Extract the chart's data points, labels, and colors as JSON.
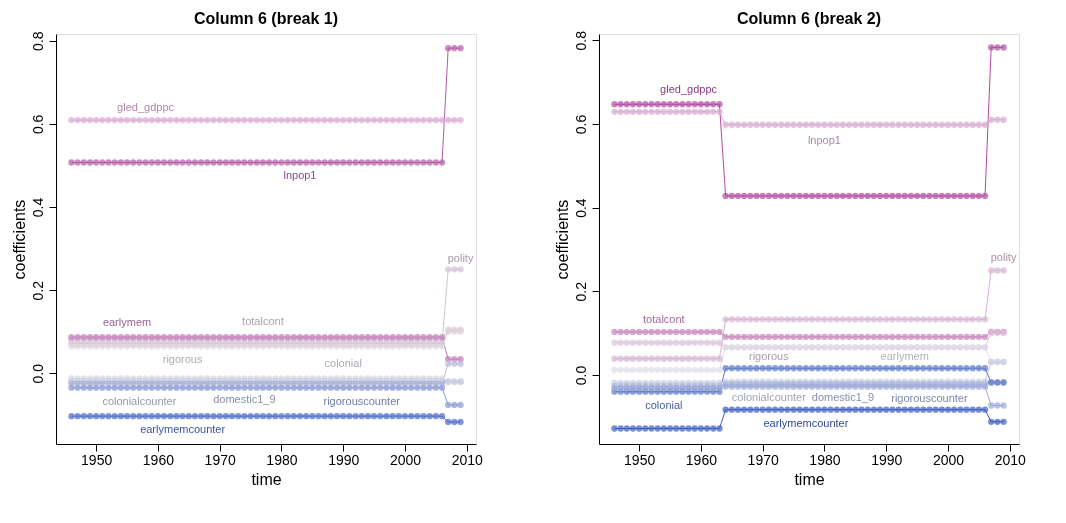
{
  "chart_data": [
    {
      "type": "line",
      "title": "Column 6 (break 1)",
      "xlabel": "time",
      "ylabel": "coefficients",
      "marker": "circle",
      "grid": false,
      "legend": false,
      "x": [
        1946,
        1947,
        1948,
        1949,
        1950,
        1951,
        1952,
        1953,
        1954,
        1955,
        1956,
        1957,
        1958,
        1959,
        1960,
        1961,
        1962,
        1963,
        1964,
        1965,
        1966,
        1967,
        1968,
        1969,
        1970,
        1971,
        1972,
        1973,
        1974,
        1975,
        1976,
        1977,
        1978,
        1979,
        1980,
        1981,
        1982,
        1983,
        1984,
        1985,
        1986,
        1987,
        1988,
        1989,
        1990,
        1991,
        1992,
        1993,
        1994,
        1995,
        1996,
        1997,
        1998,
        1999,
        2000,
        2001,
        2002,
        2003,
        2004,
        2005,
        2006,
        2007,
        2008,
        2009
      ],
      "xlim": [
        1943.5,
        2011.5
      ],
      "xticks": [
        1950,
        1960,
        1970,
        1980,
        1990,
        2000,
        2010
      ],
      "ylim": [
        -0.17,
        0.816
      ],
      "yticks": [
        {
          "value": 0,
          "label": "0.0"
        },
        0.2,
        0.4,
        0.6,
        0.8
      ],
      "series": [
        {
          "name": "gled_gdppc",
          "color": "#dca8d4",
          "values": [
            0.609,
            0.609,
            0.609,
            0.609,
            0.609,
            0.609,
            0.609,
            0.609,
            0.609,
            0.609,
            0.609,
            0.609,
            0.609,
            0.609,
            0.609,
            0.609,
            0.609,
            0.609,
            0.609,
            0.609,
            0.609,
            0.609,
            0.609,
            0.609,
            0.609,
            0.609,
            0.609,
            0.609,
            0.609,
            0.609,
            0.609,
            0.609,
            0.609,
            0.609,
            0.609,
            0.609,
            0.609,
            0.609,
            0.609,
            0.609,
            0.609,
            0.609,
            0.609,
            0.609,
            0.609,
            0.609,
            0.609,
            0.609,
            0.609,
            0.609,
            0.609,
            0.609,
            0.609,
            0.609,
            0.609,
            0.609,
            0.609,
            0.609,
            0.609,
            0.609,
            0.609,
            0.609,
            0.609,
            0.609
          ]
        },
        {
          "name": "lnpop1",
          "color": "#b35aa6",
          "values": [
            0.507,
            0.507,
            0.507,
            0.507,
            0.507,
            0.507,
            0.507,
            0.507,
            0.507,
            0.507,
            0.507,
            0.507,
            0.507,
            0.507,
            0.507,
            0.507,
            0.507,
            0.507,
            0.507,
            0.507,
            0.507,
            0.507,
            0.507,
            0.507,
            0.507,
            0.507,
            0.507,
            0.507,
            0.507,
            0.507,
            0.507,
            0.507,
            0.507,
            0.507,
            0.507,
            0.507,
            0.507,
            0.507,
            0.507,
            0.507,
            0.507,
            0.507,
            0.507,
            0.507,
            0.507,
            0.507,
            0.507,
            0.507,
            0.507,
            0.507,
            0.507,
            0.507,
            0.507,
            0.507,
            0.507,
            0.507,
            0.507,
            0.507,
            0.507,
            0.507,
            0.507,
            0.782,
            0.782,
            0.782
          ]
        },
        {
          "name": "polity",
          "color": "#d4c2d6",
          "values": [
            0.072,
            0.072,
            0.072,
            0.072,
            0.072,
            0.072,
            0.072,
            0.072,
            0.072,
            0.072,
            0.072,
            0.072,
            0.072,
            0.072,
            0.072,
            0.072,
            0.072,
            0.072,
            0.072,
            0.072,
            0.072,
            0.072,
            0.072,
            0.072,
            0.072,
            0.072,
            0.072,
            0.072,
            0.072,
            0.072,
            0.072,
            0.072,
            0.072,
            0.072,
            0.072,
            0.072,
            0.072,
            0.072,
            0.072,
            0.072,
            0.072,
            0.072,
            0.072,
            0.072,
            0.072,
            0.072,
            0.072,
            0.072,
            0.072,
            0.072,
            0.072,
            0.072,
            0.072,
            0.072,
            0.072,
            0.072,
            0.072,
            0.072,
            0.072,
            0.072,
            0.072,
            0.25,
            0.25,
            0.25
          ]
        },
        {
          "name": "totalcont",
          "color": "#d8c8d8",
          "values": [
            0.08,
            0.08,
            0.08,
            0.08,
            0.08,
            0.08,
            0.08,
            0.08,
            0.08,
            0.08,
            0.08,
            0.08,
            0.08,
            0.08,
            0.08,
            0.08,
            0.08,
            0.08,
            0.08,
            0.08,
            0.08,
            0.08,
            0.08,
            0.08,
            0.08,
            0.08,
            0.08,
            0.08,
            0.08,
            0.08,
            0.08,
            0.08,
            0.08,
            0.08,
            0.08,
            0.08,
            0.08,
            0.08,
            0.08,
            0.08,
            0.08,
            0.08,
            0.08,
            0.08,
            0.08,
            0.08,
            0.08,
            0.08,
            0.08,
            0.08,
            0.08,
            0.08,
            0.08,
            0.08,
            0.08,
            0.08,
            0.08,
            0.08,
            0.08,
            0.08,
            0.08,
            0.105,
            0.105,
            0.105
          ]
        },
        {
          "name": "rigorous",
          "color": "#dcd4dc",
          "values": [
            0.065,
            0.065,
            0.065,
            0.065,
            0.065,
            0.065,
            0.065,
            0.065,
            0.065,
            0.065,
            0.065,
            0.065,
            0.065,
            0.065,
            0.065,
            0.065,
            0.065,
            0.065,
            0.065,
            0.065,
            0.065,
            0.065,
            0.065,
            0.065,
            0.065,
            0.065,
            0.065,
            0.065,
            0.065,
            0.065,
            0.065,
            0.065,
            0.065,
            0.065,
            0.065,
            0.065,
            0.065,
            0.065,
            0.065,
            0.065,
            0.065,
            0.065,
            0.065,
            0.065,
            0.065,
            0.065,
            0.065,
            0.065,
            0.065,
            0.065,
            0.065,
            0.065,
            0.065,
            0.065,
            0.065,
            0.065,
            0.065,
            0.065,
            0.065,
            0.065,
            0.065,
            0.1,
            0.1,
            0.1
          ]
        },
        {
          "name": "earlymem",
          "color": "#c27ab6",
          "values": [
            0.087,
            0.087,
            0.087,
            0.087,
            0.087,
            0.087,
            0.087,
            0.087,
            0.087,
            0.087,
            0.087,
            0.087,
            0.087,
            0.087,
            0.087,
            0.087,
            0.087,
            0.087,
            0.087,
            0.087,
            0.087,
            0.087,
            0.087,
            0.087,
            0.087,
            0.087,
            0.087,
            0.087,
            0.087,
            0.087,
            0.087,
            0.087,
            0.087,
            0.087,
            0.087,
            0.087,
            0.087,
            0.087,
            0.087,
            0.087,
            0.087,
            0.087,
            0.087,
            0.087,
            0.087,
            0.087,
            0.087,
            0.087,
            0.087,
            0.087,
            0.087,
            0.087,
            0.087,
            0.087,
            0.087,
            0.087,
            0.087,
            0.087,
            0.087,
            0.087,
            0.087,
            0.034,
            0.034,
            0.034
          ]
        },
        {
          "name": "colonialcounter",
          "color": "#b8bedc",
          "values": [
            -0.025,
            -0.025,
            -0.025,
            -0.025,
            -0.025,
            -0.025,
            -0.025,
            -0.025,
            -0.025,
            -0.025,
            -0.025,
            -0.025,
            -0.025,
            -0.025,
            -0.025,
            -0.025,
            -0.025,
            -0.025,
            -0.025,
            -0.025,
            -0.025,
            -0.025,
            -0.025,
            -0.025,
            -0.025,
            -0.025,
            -0.025,
            -0.025,
            -0.025,
            -0.025,
            -0.025,
            -0.025,
            -0.025,
            -0.025,
            -0.025,
            -0.025,
            -0.025,
            -0.025,
            -0.025,
            -0.025,
            -0.025,
            -0.025,
            -0.025,
            -0.025,
            -0.025,
            -0.025,
            -0.025,
            -0.025,
            -0.025,
            -0.025,
            -0.025,
            -0.025,
            -0.025,
            -0.025,
            -0.025,
            -0.025,
            -0.025,
            -0.025,
            -0.025,
            -0.025,
            -0.025,
            0.023,
            0.023,
            0.023
          ]
        },
        {
          "name": "domestic1_9",
          "color": "#a8b2d8",
          "values": [
            -0.02,
            -0.02,
            -0.02,
            -0.02,
            -0.02,
            -0.02,
            -0.02,
            -0.02,
            -0.02,
            -0.02,
            -0.02,
            -0.02,
            -0.02,
            -0.02,
            -0.02,
            -0.02,
            -0.02,
            -0.02,
            -0.02,
            -0.02,
            -0.02,
            -0.02,
            -0.02,
            -0.02,
            -0.02,
            -0.02,
            -0.02,
            -0.02,
            -0.02,
            -0.02,
            -0.02,
            -0.02,
            -0.02,
            -0.02,
            -0.02,
            -0.02,
            -0.02,
            -0.02,
            -0.02,
            -0.02,
            -0.02,
            -0.02,
            -0.02,
            -0.02,
            -0.02,
            -0.02,
            -0.02,
            -0.02,
            -0.02,
            -0.02,
            -0.02,
            -0.02,
            -0.02,
            -0.02,
            -0.02,
            -0.02,
            -0.02,
            -0.02,
            -0.02,
            -0.02,
            -0.02,
            -0.02,
            -0.02,
            -0.02
          ]
        },
        {
          "name": "colonial",
          "color": "#d4d4e2",
          "values": [
            -0.012,
            -0.012,
            -0.012,
            -0.012,
            -0.012,
            -0.012,
            -0.012,
            -0.012,
            -0.012,
            -0.012,
            -0.012,
            -0.012,
            -0.012,
            -0.012,
            -0.012,
            -0.012,
            -0.012,
            -0.012,
            -0.012,
            -0.012,
            -0.012,
            -0.012,
            -0.012,
            -0.012,
            -0.012,
            -0.012,
            -0.012,
            -0.012,
            -0.012,
            -0.012,
            -0.012,
            -0.012,
            -0.012,
            -0.012,
            -0.012,
            -0.012,
            -0.012,
            -0.012,
            -0.012,
            -0.012,
            -0.012,
            -0.012,
            -0.012,
            -0.012,
            -0.012,
            -0.012,
            -0.012,
            -0.012,
            -0.012,
            -0.012,
            -0.012,
            -0.012,
            -0.012,
            -0.012,
            -0.012,
            -0.012,
            -0.012,
            -0.012,
            -0.012,
            -0.012,
            -0.012,
            -0.02,
            -0.02,
            -0.02
          ]
        },
        {
          "name": "rigorouscounter",
          "color": "#8a9ad4",
          "values": [
            -0.035,
            -0.035,
            -0.035,
            -0.035,
            -0.035,
            -0.035,
            -0.035,
            -0.035,
            -0.035,
            -0.035,
            -0.035,
            -0.035,
            -0.035,
            -0.035,
            -0.035,
            -0.035,
            -0.035,
            -0.035,
            -0.035,
            -0.035,
            -0.035,
            -0.035,
            -0.035,
            -0.035,
            -0.035,
            -0.035,
            -0.035,
            -0.035,
            -0.035,
            -0.035,
            -0.035,
            -0.035,
            -0.035,
            -0.035,
            -0.035,
            -0.035,
            -0.035,
            -0.035,
            -0.035,
            -0.035,
            -0.035,
            -0.035,
            -0.035,
            -0.035,
            -0.035,
            -0.035,
            -0.035,
            -0.035,
            -0.035,
            -0.035,
            -0.035,
            -0.035,
            -0.035,
            -0.035,
            -0.035,
            -0.035,
            -0.035,
            -0.035,
            -0.035,
            -0.035,
            -0.035,
            -0.076,
            -0.076,
            -0.076
          ]
        },
        {
          "name": "earlymemcounter",
          "color": "#4a6ac8",
          "values": [
            -0.103,
            -0.103,
            -0.103,
            -0.103,
            -0.103,
            -0.103,
            -0.103,
            -0.103,
            -0.103,
            -0.103,
            -0.103,
            -0.103,
            -0.103,
            -0.103,
            -0.103,
            -0.103,
            -0.103,
            -0.103,
            -0.103,
            -0.103,
            -0.103,
            -0.103,
            -0.103,
            -0.103,
            -0.103,
            -0.103,
            -0.103,
            -0.103,
            -0.103,
            -0.103,
            -0.103,
            -0.103,
            -0.103,
            -0.103,
            -0.103,
            -0.103,
            -0.103,
            -0.103,
            -0.103,
            -0.103,
            -0.103,
            -0.103,
            -0.103,
            -0.103,
            -0.103,
            -0.103,
            -0.103,
            -0.103,
            -0.103,
            -0.103,
            -0.103,
            -0.103,
            -0.103,
            -0.103,
            -0.103,
            -0.103,
            -0.103,
            -0.103,
            -0.103,
            -0.103,
            -0.103,
            -0.117,
            -0.117,
            -0.117
          ]
        }
      ]
    },
    {
      "type": "line",
      "title": "Column 6 (break 2)",
      "xlabel": "time",
      "ylabel": "coefficients",
      "marker": "circle",
      "grid": false,
      "legend": false,
      "x": [
        1946,
        1947,
        1948,
        1949,
        1950,
        1951,
        1952,
        1953,
        1954,
        1955,
        1956,
        1957,
        1958,
        1959,
        1960,
        1961,
        1962,
        1963,
        1964,
        1965,
        1966,
        1967,
        1968,
        1969,
        1970,
        1971,
        1972,
        1973,
        1974,
        1975,
        1976,
        1977,
        1978,
        1979,
        1980,
        1981,
        1982,
        1983,
        1984,
        1985,
        1986,
        1987,
        1988,
        1989,
        1990,
        1991,
        1992,
        1993,
        1994,
        1995,
        1996,
        1997,
        1998,
        1999,
        2000,
        2001,
        2002,
        2003,
        2004,
        2005,
        2006,
        2007,
        2008,
        2009
      ],
      "xlim": [
        1943.5,
        2011.5
      ],
      "xticks": [
        1950,
        1960,
        1970,
        1980,
        1990,
        2000,
        2010
      ],
      "ylim": [
        -0.165,
        0.815
      ],
      "yticks": [
        {
          "value": 0,
          "label": "0.0"
        },
        0.2,
        0.4,
        0.6,
        0.8
      ],
      "series": [
        {
          "name": "gled_gdppc",
          "color": "#b04aa0",
          "values": [
            0.647,
            0.647,
            0.647,
            0.647,
            0.647,
            0.647,
            0.647,
            0.647,
            0.647,
            0.647,
            0.647,
            0.647,
            0.647,
            0.647,
            0.647,
            0.647,
            0.647,
            0.647,
            0.428,
            0.428,
            0.428,
            0.428,
            0.428,
            0.428,
            0.428,
            0.428,
            0.428,
            0.428,
            0.428,
            0.428,
            0.428,
            0.428,
            0.428,
            0.428,
            0.428,
            0.428,
            0.428,
            0.428,
            0.428,
            0.428,
            0.428,
            0.428,
            0.428,
            0.428,
            0.428,
            0.428,
            0.428,
            0.428,
            0.428,
            0.428,
            0.428,
            0.428,
            0.428,
            0.428,
            0.428,
            0.428,
            0.428,
            0.428,
            0.428,
            0.428,
            0.428,
            0.783,
            0.783,
            0.783
          ]
        },
        {
          "name": "lnpop1",
          "color": "#d8a8d0",
          "values": [
            0.629,
            0.629,
            0.629,
            0.629,
            0.629,
            0.629,
            0.629,
            0.629,
            0.629,
            0.629,
            0.629,
            0.629,
            0.629,
            0.629,
            0.629,
            0.629,
            0.629,
            0.629,
            0.598,
            0.598,
            0.598,
            0.598,
            0.598,
            0.598,
            0.598,
            0.598,
            0.598,
            0.598,
            0.598,
            0.598,
            0.598,
            0.598,
            0.598,
            0.598,
            0.598,
            0.598,
            0.598,
            0.598,
            0.598,
            0.598,
            0.598,
            0.598,
            0.598,
            0.598,
            0.598,
            0.598,
            0.598,
            0.598,
            0.598,
            0.598,
            0.598,
            0.598,
            0.598,
            0.598,
            0.598,
            0.598,
            0.598,
            0.598,
            0.598,
            0.598,
            0.598,
            0.61,
            0.61,
            0.61
          ]
        },
        {
          "name": "polity",
          "color": "#d4b4d2",
          "values": [
            0.039,
            0.039,
            0.039,
            0.039,
            0.039,
            0.039,
            0.039,
            0.039,
            0.039,
            0.039,
            0.039,
            0.039,
            0.039,
            0.039,
            0.039,
            0.039,
            0.039,
            0.039,
            0.133,
            0.133,
            0.133,
            0.133,
            0.133,
            0.133,
            0.133,
            0.133,
            0.133,
            0.133,
            0.133,
            0.133,
            0.133,
            0.133,
            0.133,
            0.133,
            0.133,
            0.133,
            0.133,
            0.133,
            0.133,
            0.133,
            0.133,
            0.133,
            0.133,
            0.133,
            0.133,
            0.133,
            0.133,
            0.133,
            0.133,
            0.133,
            0.133,
            0.133,
            0.133,
            0.133,
            0.133,
            0.133,
            0.133,
            0.133,
            0.133,
            0.133,
            0.133,
            0.25,
            0.25,
            0.25
          ]
        },
        {
          "name": "totalcont",
          "color": "#c884bc",
          "values": [
            0.103,
            0.103,
            0.103,
            0.103,
            0.103,
            0.103,
            0.103,
            0.103,
            0.103,
            0.103,
            0.103,
            0.103,
            0.103,
            0.103,
            0.103,
            0.103,
            0.103,
            0.103,
            0.091,
            0.091,
            0.091,
            0.091,
            0.091,
            0.091,
            0.091,
            0.091,
            0.091,
            0.091,
            0.091,
            0.091,
            0.091,
            0.091,
            0.091,
            0.091,
            0.091,
            0.091,
            0.091,
            0.091,
            0.091,
            0.091,
            0.091,
            0.091,
            0.091,
            0.091,
            0.091,
            0.091,
            0.091,
            0.091,
            0.091,
            0.091,
            0.091,
            0.091,
            0.091,
            0.091,
            0.091,
            0.091,
            0.091,
            0.091,
            0.091,
            0.091,
            0.091,
            0.103,
            0.103,
            0.103
          ]
        },
        {
          "name": "rigorous",
          "color": "#dcc4dc",
          "values": [
            0.077,
            0.077,
            0.077,
            0.077,
            0.077,
            0.077,
            0.077,
            0.077,
            0.077,
            0.077,
            0.077,
            0.077,
            0.077,
            0.077,
            0.077,
            0.077,
            0.077,
            0.077,
            0.066,
            0.066,
            0.066,
            0.066,
            0.066,
            0.066,
            0.066,
            0.066,
            0.066,
            0.066,
            0.066,
            0.066,
            0.066,
            0.066,
            0.066,
            0.066,
            0.066,
            0.066,
            0.066,
            0.066,
            0.066,
            0.066,
            0.066,
            0.066,
            0.066,
            0.066,
            0.066,
            0.066,
            0.066,
            0.066,
            0.066,
            0.066,
            0.066,
            0.066,
            0.066,
            0.066,
            0.066,
            0.066,
            0.066,
            0.066,
            0.066,
            0.066,
            0.066,
            0.1,
            0.1,
            0.1
          ]
        },
        {
          "name": "earlymem",
          "color": "#e0dee8",
          "values": [
            0.012,
            0.012,
            0.012,
            0.012,
            0.012,
            0.012,
            0.012,
            0.012,
            0.012,
            0.012,
            0.012,
            0.012,
            0.012,
            0.012,
            0.012,
            0.012,
            0.012,
            0.012,
            0.066,
            0.066,
            0.066,
            0.066,
            0.066,
            0.066,
            0.066,
            0.066,
            0.066,
            0.066,
            0.066,
            0.066,
            0.066,
            0.066,
            0.066,
            0.066,
            0.066,
            0.066,
            0.066,
            0.066,
            0.066,
            0.066,
            0.066,
            0.066,
            0.066,
            0.066,
            0.066,
            0.066,
            0.066,
            0.066,
            0.066,
            0.066,
            0.066,
            0.066,
            0.066,
            0.066,
            0.066,
            0.066,
            0.066,
            0.066,
            0.066,
            0.066,
            0.066,
            0.031,
            0.031,
            0.031
          ]
        },
        {
          "name": "colonialcounter",
          "color": "#c8cce0",
          "values": [
            -0.019,
            -0.019,
            -0.019,
            -0.019,
            -0.019,
            -0.019,
            -0.019,
            -0.019,
            -0.019,
            -0.019,
            -0.019,
            -0.019,
            -0.019,
            -0.019,
            -0.019,
            -0.019,
            -0.019,
            -0.019,
            -0.016,
            -0.016,
            -0.016,
            -0.016,
            -0.016,
            -0.016,
            -0.016,
            -0.016,
            -0.016,
            -0.016,
            -0.016,
            -0.016,
            -0.016,
            -0.016,
            -0.016,
            -0.016,
            -0.016,
            -0.016,
            -0.016,
            -0.016,
            -0.016,
            -0.016,
            -0.016,
            -0.016,
            -0.016,
            -0.016,
            -0.016,
            -0.016,
            -0.016,
            -0.016,
            -0.016,
            -0.016,
            -0.016,
            -0.016,
            -0.016,
            -0.016,
            -0.016,
            -0.016,
            -0.016,
            -0.016,
            -0.016,
            -0.016,
            -0.016,
            0.031,
            0.031,
            0.031
          ]
        },
        {
          "name": "domestic1_9",
          "color": "#a8b2d8",
          "values": [
            -0.027,
            -0.027,
            -0.027,
            -0.027,
            -0.027,
            -0.027,
            -0.027,
            -0.027,
            -0.027,
            -0.027,
            -0.027,
            -0.027,
            -0.027,
            -0.027,
            -0.027,
            -0.027,
            -0.027,
            -0.027,
            -0.022,
            -0.022,
            -0.022,
            -0.022,
            -0.022,
            -0.022,
            -0.022,
            -0.022,
            -0.022,
            -0.022,
            -0.022,
            -0.022,
            -0.022,
            -0.022,
            -0.022,
            -0.022,
            -0.022,
            -0.022,
            -0.022,
            -0.022,
            -0.022,
            -0.022,
            -0.022,
            -0.022,
            -0.022,
            -0.022,
            -0.022,
            -0.022,
            -0.022,
            -0.022,
            -0.022,
            -0.022,
            -0.022,
            -0.022,
            -0.022,
            -0.022,
            -0.022,
            -0.022,
            -0.022,
            -0.022,
            -0.022,
            -0.022,
            -0.022,
            -0.018,
            -0.018,
            -0.018
          ]
        },
        {
          "name": "colonial",
          "color": "#5a78c8",
          "values": [
            -0.04,
            -0.04,
            -0.04,
            -0.04,
            -0.04,
            -0.04,
            -0.04,
            -0.04,
            -0.04,
            -0.04,
            -0.04,
            -0.04,
            -0.04,
            -0.04,
            -0.04,
            -0.04,
            -0.04,
            -0.04,
            0.016,
            0.016,
            0.016,
            0.016,
            0.016,
            0.016,
            0.016,
            0.016,
            0.016,
            0.016,
            0.016,
            0.016,
            0.016,
            0.016,
            0.016,
            0.016,
            0.016,
            0.016,
            0.016,
            0.016,
            0.016,
            0.016,
            0.016,
            0.016,
            0.016,
            0.016,
            0.016,
            0.016,
            0.016,
            0.016,
            0.016,
            0.016,
            0.016,
            0.016,
            0.016,
            0.016,
            0.016,
            0.016,
            0.016,
            0.016,
            0.016,
            0.016,
            0.016,
            -0.018,
            -0.018,
            -0.018
          ]
        },
        {
          "name": "rigorouscounter",
          "color": "#9aa8d8",
          "values": [
            -0.032,
            -0.032,
            -0.032,
            -0.032,
            -0.032,
            -0.032,
            -0.032,
            -0.032,
            -0.032,
            -0.032,
            -0.032,
            -0.032,
            -0.032,
            -0.032,
            -0.032,
            -0.032,
            -0.032,
            -0.032,
            -0.028,
            -0.028,
            -0.028,
            -0.028,
            -0.028,
            -0.028,
            -0.028,
            -0.028,
            -0.028,
            -0.028,
            -0.028,
            -0.028,
            -0.028,
            -0.028,
            -0.028,
            -0.028,
            -0.028,
            -0.028,
            -0.028,
            -0.028,
            -0.028,
            -0.028,
            -0.028,
            -0.028,
            -0.028,
            -0.028,
            -0.028,
            -0.028,
            -0.028,
            -0.028,
            -0.028,
            -0.028,
            -0.028,
            -0.028,
            -0.028,
            -0.028,
            -0.028,
            -0.028,
            -0.028,
            -0.028,
            -0.028,
            -0.028,
            -0.028,
            -0.073,
            -0.073,
            -0.073
          ]
        },
        {
          "name": "earlymemcounter",
          "color": "#3a5cc0",
          "values": [
            -0.128,
            -0.128,
            -0.128,
            -0.128,
            -0.128,
            -0.128,
            -0.128,
            -0.128,
            -0.128,
            -0.128,
            -0.128,
            -0.128,
            -0.128,
            -0.128,
            -0.128,
            -0.128,
            -0.128,
            -0.128,
            -0.083,
            -0.083,
            -0.083,
            -0.083,
            -0.083,
            -0.083,
            -0.083,
            -0.083,
            -0.083,
            -0.083,
            -0.083,
            -0.083,
            -0.083,
            -0.083,
            -0.083,
            -0.083,
            -0.083,
            -0.083,
            -0.083,
            -0.083,
            -0.083,
            -0.083,
            -0.083,
            -0.083,
            -0.083,
            -0.083,
            -0.083,
            -0.083,
            -0.083,
            -0.083,
            -0.083,
            -0.083,
            -0.083,
            -0.083,
            -0.083,
            -0.083,
            -0.083,
            -0.083,
            -0.083,
            -0.083,
            -0.083,
            -0.083,
            -0.083,
            -0.112,
            -0.112,
            -0.112
          ]
        }
      ]
    }
  ]
}
